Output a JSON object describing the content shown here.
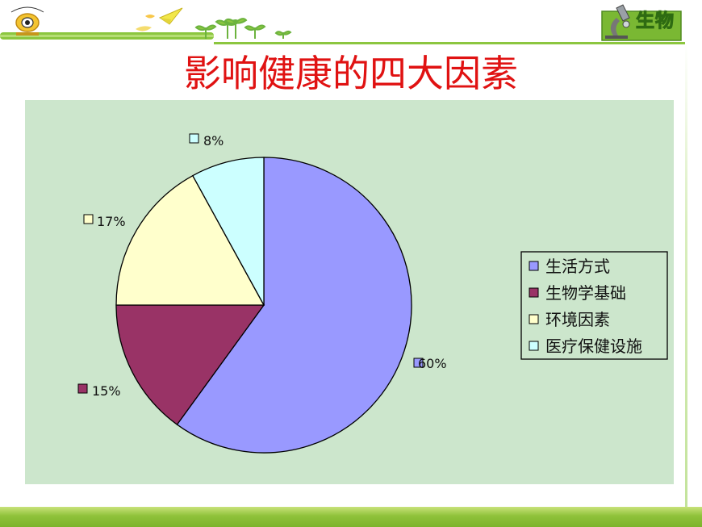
{
  "header": {
    "subject_label": "生物"
  },
  "slide": {
    "title": "影响健康的四大因素"
  },
  "chart_data": {
    "type": "pie",
    "title": "影响健康的四大因素",
    "categories": [
      "生活方式",
      "生物学基础",
      "环境因素",
      "医疗保健设施"
    ],
    "values": [
      60,
      15,
      17,
      8
    ],
    "labels": [
      "60%",
      "15%",
      "17%",
      "8%"
    ],
    "colors": [
      "#9999ff",
      "#993366",
      "#ffffcc",
      "#ccffff"
    ],
    "legend_position": "right",
    "start_angle": "top, clockwise"
  }
}
